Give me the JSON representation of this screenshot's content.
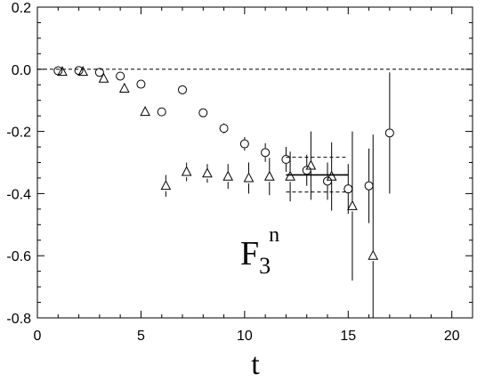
{
  "chart_data": {
    "type": "scatter",
    "title": "",
    "xlabel": "t",
    "ylabel": "",
    "xlim": [
      0,
      21
    ],
    "ylim": [
      -0.8,
      0.2
    ],
    "x_ticks": [
      0,
      5,
      10,
      15,
      20
    ],
    "x_tick_labels": [
      "0",
      "5",
      "10",
      "15",
      "20"
    ],
    "y_ticks": [
      0.2,
      0.0,
      -0.2,
      -0.4,
      -0.6,
      -0.8
    ],
    "y_tick_labels": [
      "0.2",
      "0.0",
      "-0.2",
      "-0.4",
      "-0.6",
      "-0.8"
    ],
    "grid": false,
    "reference_line": {
      "y": 0.0,
      "style": "dashed"
    },
    "annotation": {
      "main": "F",
      "sub": "3",
      "sup": "n"
    },
    "series": [
      {
        "marker": "circle",
        "points": [
          {
            "x": 1,
            "y": -0.005,
            "err": 0.004
          },
          {
            "x": 2,
            "y": -0.004,
            "err": 0.004
          },
          {
            "x": 3,
            "y": -0.01,
            "err": 0.005
          },
          {
            "x": 4,
            "y": -0.022,
            "err": 0.006
          },
          {
            "x": 5,
            "y": -0.048,
            "err": 0.008
          },
          {
            "x": 6,
            "y": -0.137,
            "err": 0.01
          },
          {
            "x": 7,
            "y": -0.066,
            "err": 0.01
          },
          {
            "x": 8,
            "y": -0.14,
            "err": 0.012
          },
          {
            "x": 9,
            "y": -0.19,
            "err": 0.016
          },
          {
            "x": 10,
            "y": -0.24,
            "err": 0.022
          },
          {
            "x": 11,
            "y": -0.268,
            "err": 0.03
          },
          {
            "x": 12,
            "y": -0.29,
            "err": 0.04
          },
          {
            "x": 13,
            "y": -0.325,
            "err": 0.05
          },
          {
            "x": 14,
            "y": -0.36,
            "err": 0.06
          },
          {
            "x": 15,
            "y": -0.385,
            "err": 0.08
          },
          {
            "x": 16,
            "y": -0.375,
            "err": 0.12
          },
          {
            "x": 17,
            "y": -0.205,
            "err": 0.195
          }
        ]
      },
      {
        "marker": "triangle",
        "points": [
          {
            "x": 1.2,
            "y": -0.008,
            "err": 0.004
          },
          {
            "x": 2.2,
            "y": -0.008,
            "err": 0.004
          },
          {
            "x": 3.2,
            "y": -0.03,
            "err": 0.006
          },
          {
            "x": 4.2,
            "y": -0.062,
            "err": 0.008
          },
          {
            "x": 5.2,
            "y": -0.137,
            "err": 0.01
          },
          {
            "x": 6.2,
            "y": -0.375,
            "err": 0.035
          },
          {
            "x": 7.2,
            "y": -0.33,
            "err": 0.03
          },
          {
            "x": 8.2,
            "y": -0.335,
            "err": 0.03
          },
          {
            "x": 9.2,
            "y": -0.345,
            "err": 0.04
          },
          {
            "x": 10.2,
            "y": -0.35,
            "err": 0.05
          },
          {
            "x": 11.2,
            "y": -0.345,
            "err": 0.06
          },
          {
            "x": 12.2,
            "y": -0.345,
            "err": 0.08
          },
          {
            "x": 13.2,
            "y": -0.31,
            "err": 0.11
          },
          {
            "x": 14.2,
            "y": -0.345,
            "err": 0.11
          },
          {
            "x": 15.2,
            "y": -0.44,
            "err": 0.24
          },
          {
            "x": 16.2,
            "y": -0.6,
            "err": 0.39
          }
        ]
      }
    ],
    "fit": {
      "x_range": [
        12,
        15
      ],
      "y": -0.34,
      "err_upper": -0.283,
      "err_lower": -0.395
    }
  }
}
